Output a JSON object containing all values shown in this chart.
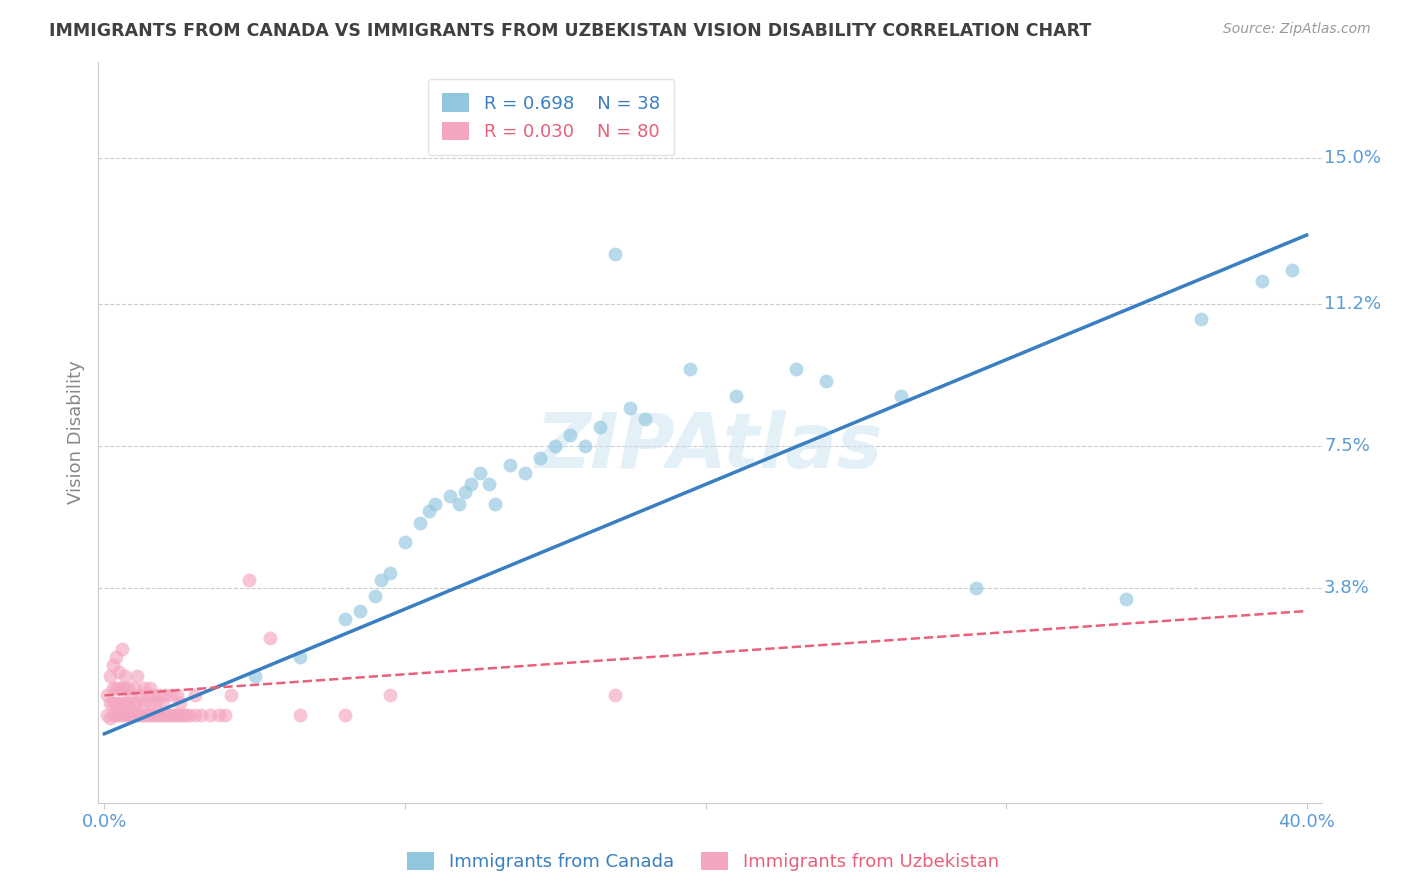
{
  "title": "IMMIGRANTS FROM CANADA VS IMMIGRANTS FROM UZBEKISTAN VISION DISABILITY CORRELATION CHART",
  "source": "Source: ZipAtlas.com",
  "ylabel": "Vision Disability",
  "xlim": [
    -0.002,
    0.405
  ],
  "ylim": [
    -0.018,
    0.175
  ],
  "yticks": [
    0.038,
    0.075,
    0.112,
    0.15
  ],
  "ytick_labels": [
    "3.8%",
    "7.5%",
    "11.2%",
    "15.0%"
  ],
  "xticks": [
    0.0,
    0.1,
    0.2,
    0.3,
    0.4
  ],
  "xtick_labels": [
    "0.0%",
    "",
    "",
    "",
    "40.0%"
  ],
  "canada_color": "#92c5de",
  "uzbekistan_color": "#f4a6c0",
  "canada_line_color": "#3a7fc1",
  "uzbekistan_line_color": "#e8607a",
  "canada_R": 0.698,
  "canada_N": 38,
  "uzbekistan_R": 0.03,
  "uzbekistan_N": 80,
  "canada_line_x0": 0.0,
  "canada_line_y0": 0.0,
  "canada_line_x1": 0.4,
  "canada_line_y1": 0.13,
  "uzbekistan_line_x0": 0.0,
  "uzbekistan_line_y0": 0.01,
  "uzbekistan_line_x1": 0.4,
  "uzbekistan_line_y1": 0.032,
  "canada_scatter_x": [
    0.05,
    0.065,
    0.08,
    0.085,
    0.09,
    0.092,
    0.095,
    0.1,
    0.105,
    0.108,
    0.11,
    0.115,
    0.118,
    0.12,
    0.122,
    0.125,
    0.128,
    0.13,
    0.135,
    0.14,
    0.145,
    0.15,
    0.155,
    0.16,
    0.165,
    0.175,
    0.18,
    0.195,
    0.21,
    0.23,
    0.24,
    0.265,
    0.29,
    0.34,
    0.365,
    0.385,
    0.395,
    0.17
  ],
  "canada_scatter_y": [
    0.015,
    0.02,
    0.03,
    0.032,
    0.036,
    0.04,
    0.042,
    0.05,
    0.055,
    0.058,
    0.06,
    0.062,
    0.06,
    0.063,
    0.065,
    0.068,
    0.065,
    0.06,
    0.07,
    0.068,
    0.072,
    0.075,
    0.078,
    0.075,
    0.08,
    0.085,
    0.082,
    0.095,
    0.088,
    0.095,
    0.092,
    0.088,
    0.038,
    0.035,
    0.108,
    0.118,
    0.121,
    0.125
  ],
  "uzbekistan_scatter_x": [
    0.001,
    0.001,
    0.002,
    0.002,
    0.002,
    0.003,
    0.003,
    0.003,
    0.003,
    0.004,
    0.004,
    0.004,
    0.004,
    0.005,
    0.005,
    0.005,
    0.005,
    0.006,
    0.006,
    0.006,
    0.006,
    0.007,
    0.007,
    0.007,
    0.007,
    0.008,
    0.008,
    0.008,
    0.009,
    0.009,
    0.01,
    0.01,
    0.01,
    0.011,
    0.011,
    0.011,
    0.012,
    0.012,
    0.013,
    0.013,
    0.013,
    0.014,
    0.014,
    0.015,
    0.015,
    0.015,
    0.016,
    0.016,
    0.017,
    0.017,
    0.018,
    0.018,
    0.019,
    0.019,
    0.02,
    0.02,
    0.021,
    0.022,
    0.022,
    0.023,
    0.024,
    0.024,
    0.025,
    0.025,
    0.026,
    0.027,
    0.028,
    0.03,
    0.03,
    0.032,
    0.035,
    0.038,
    0.04,
    0.042,
    0.048,
    0.055,
    0.065,
    0.08,
    0.095,
    0.17
  ],
  "uzbekistan_scatter_y": [
    0.005,
    0.01,
    0.004,
    0.008,
    0.015,
    0.005,
    0.008,
    0.012,
    0.018,
    0.005,
    0.008,
    0.012,
    0.02,
    0.005,
    0.008,
    0.012,
    0.016,
    0.005,
    0.008,
    0.012,
    0.022,
    0.005,
    0.008,
    0.012,
    0.015,
    0.005,
    0.008,
    0.012,
    0.005,
    0.01,
    0.005,
    0.008,
    0.012,
    0.005,
    0.008,
    0.015,
    0.005,
    0.01,
    0.005,
    0.008,
    0.012,
    0.005,
    0.01,
    0.005,
    0.008,
    0.012,
    0.005,
    0.01,
    0.005,
    0.008,
    0.005,
    0.01,
    0.005,
    0.008,
    0.005,
    0.01,
    0.005,
    0.005,
    0.01,
    0.005,
    0.005,
    0.01,
    0.005,
    0.008,
    0.005,
    0.005,
    0.005,
    0.005,
    0.01,
    0.005,
    0.005,
    0.005,
    0.005,
    0.01,
    0.04,
    0.025,
    0.005,
    0.005,
    0.01,
    0.01
  ],
  "watermark": "ZIPAtlas",
  "bg_color": "#ffffff",
  "grid_color": "#cccccc",
  "title_color": "#404040",
  "tick_label_color": "#5b9bd5",
  "legend_canada_label": "Immigrants from Canada",
  "legend_uzbekistan_label": "Immigrants from Uzbekistan"
}
